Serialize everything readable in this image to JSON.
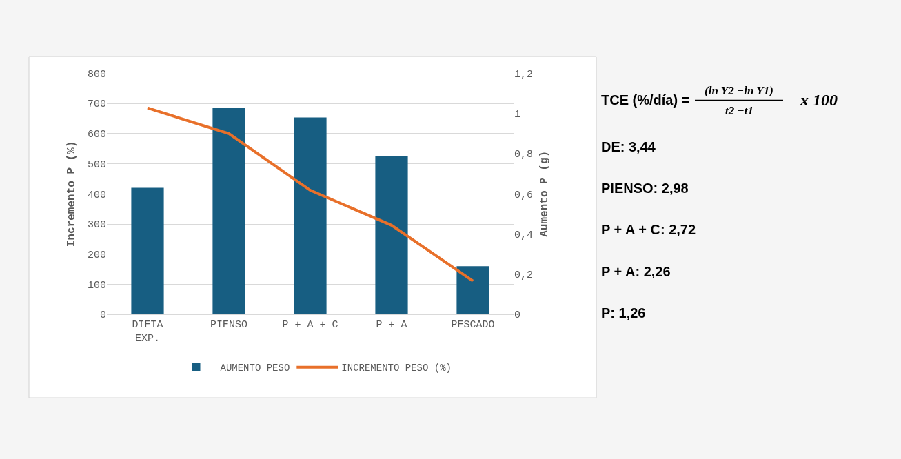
{
  "chart_data": {
    "type": "bar",
    "categories": [
      "DIETA EXP.",
      "PIENSO",
      "P + A + C",
      "P + A",
      "PESCADO"
    ],
    "series": [
      {
        "name": "AUMENTO PESO",
        "axis": "y2",
        "color": "#175e82",
        "values": [
          0.63,
          1.03,
          0.98,
          0.79,
          0.24
        ]
      },
      {
        "name": "INCREMENTO PESO (%)",
        "type": "line",
        "axis": "y",
        "color": "#e8702a",
        "values": [
          685,
          600,
          412,
          296,
          111
        ]
      }
    ],
    "ylabel": "Incremento P (%)",
    "y2label": "Aumento P (g)",
    "ylim": [
      0,
      800
    ],
    "yticks": [
      0,
      100,
      200,
      300,
      400,
      500,
      600,
      700,
      800
    ],
    "y2lim": [
      0,
      1.2
    ],
    "y2ticks": [
      {
        "value": 0,
        "label": "0"
      },
      {
        "value": 0.2,
        "label": "0,2"
      },
      {
        "value": 0.4,
        "label": "0,4"
      },
      {
        "value": 0.6,
        "label": "0,6"
      },
      {
        "value": 0.8,
        "label": "0,8"
      },
      {
        "value": 1,
        "label": "1"
      },
      {
        "value": 1.2,
        "label": "1,2"
      }
    ],
    "grid": "y",
    "legend": "bottom",
    "marker": "none",
    "line_style": "solid",
    "annotations": [
      "TCE (%/día) =",
      "(ln Y2 −ln Y1)",
      "t2 −t1",
      "x 100",
      "DE: 3,44",
      "PIENSO: 2,98",
      "P + A + C: 2,72",
      "P + A: 2,26",
      "P: 1,26"
    ]
  }
}
